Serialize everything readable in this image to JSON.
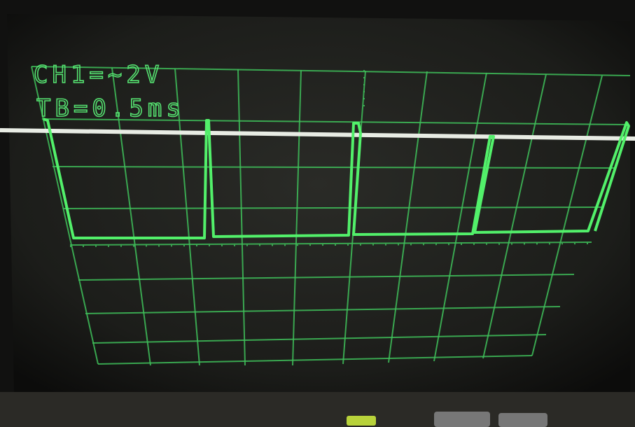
{
  "screen": {
    "channel_label": "CH1=~2V",
    "timebase_label": "TB=0.5ms"
  }
}
